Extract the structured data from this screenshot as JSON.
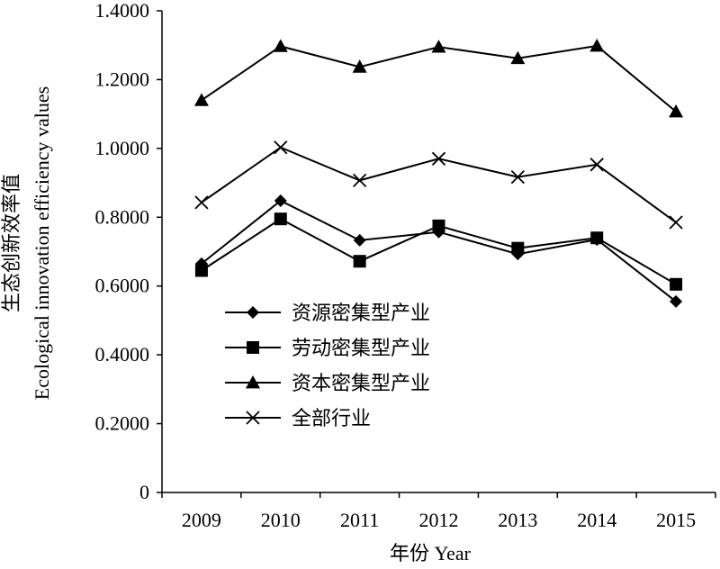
{
  "chart_data": {
    "type": "line",
    "title": "",
    "xlabel": "年份 Year",
    "ylabel_cn": "生态创新效率值",
    "ylabel_en": "Ecological innovation efficiency values",
    "categories": [
      "2009",
      "2010",
      "2011",
      "2012",
      "2013",
      "2014",
      "2015"
    ],
    "ylim": [
      0,
      1.4
    ],
    "yticks": [
      "0",
      "0.2000",
      "0.4000",
      "0.6000",
      "0.8000",
      "1.0000",
      "1.2000",
      "1.4000"
    ],
    "grid": false,
    "legend_position": "center-left",
    "series": [
      {
        "name": "资源密集型产业",
        "marker": "diamond",
        "color": "#000000",
        "values": [
          0.665,
          0.848,
          0.733,
          0.757,
          0.693,
          0.735,
          0.555
        ]
      },
      {
        "name": "劳动密集型产业",
        "marker": "square",
        "color": "#000000",
        "values": [
          0.645,
          0.795,
          0.672,
          0.775,
          0.71,
          0.74,
          0.605
        ]
      },
      {
        "name": "资本密集型产业",
        "marker": "triangle",
        "color": "#000000",
        "values": [
          1.14,
          1.297,
          1.237,
          1.295,
          1.262,
          1.298,
          1.107
        ]
      },
      {
        "name": "全部行业",
        "marker": "x",
        "color": "#000000",
        "values": [
          0.843,
          1.003,
          0.907,
          0.97,
          0.917,
          0.953,
          0.785
        ]
      }
    ]
  }
}
